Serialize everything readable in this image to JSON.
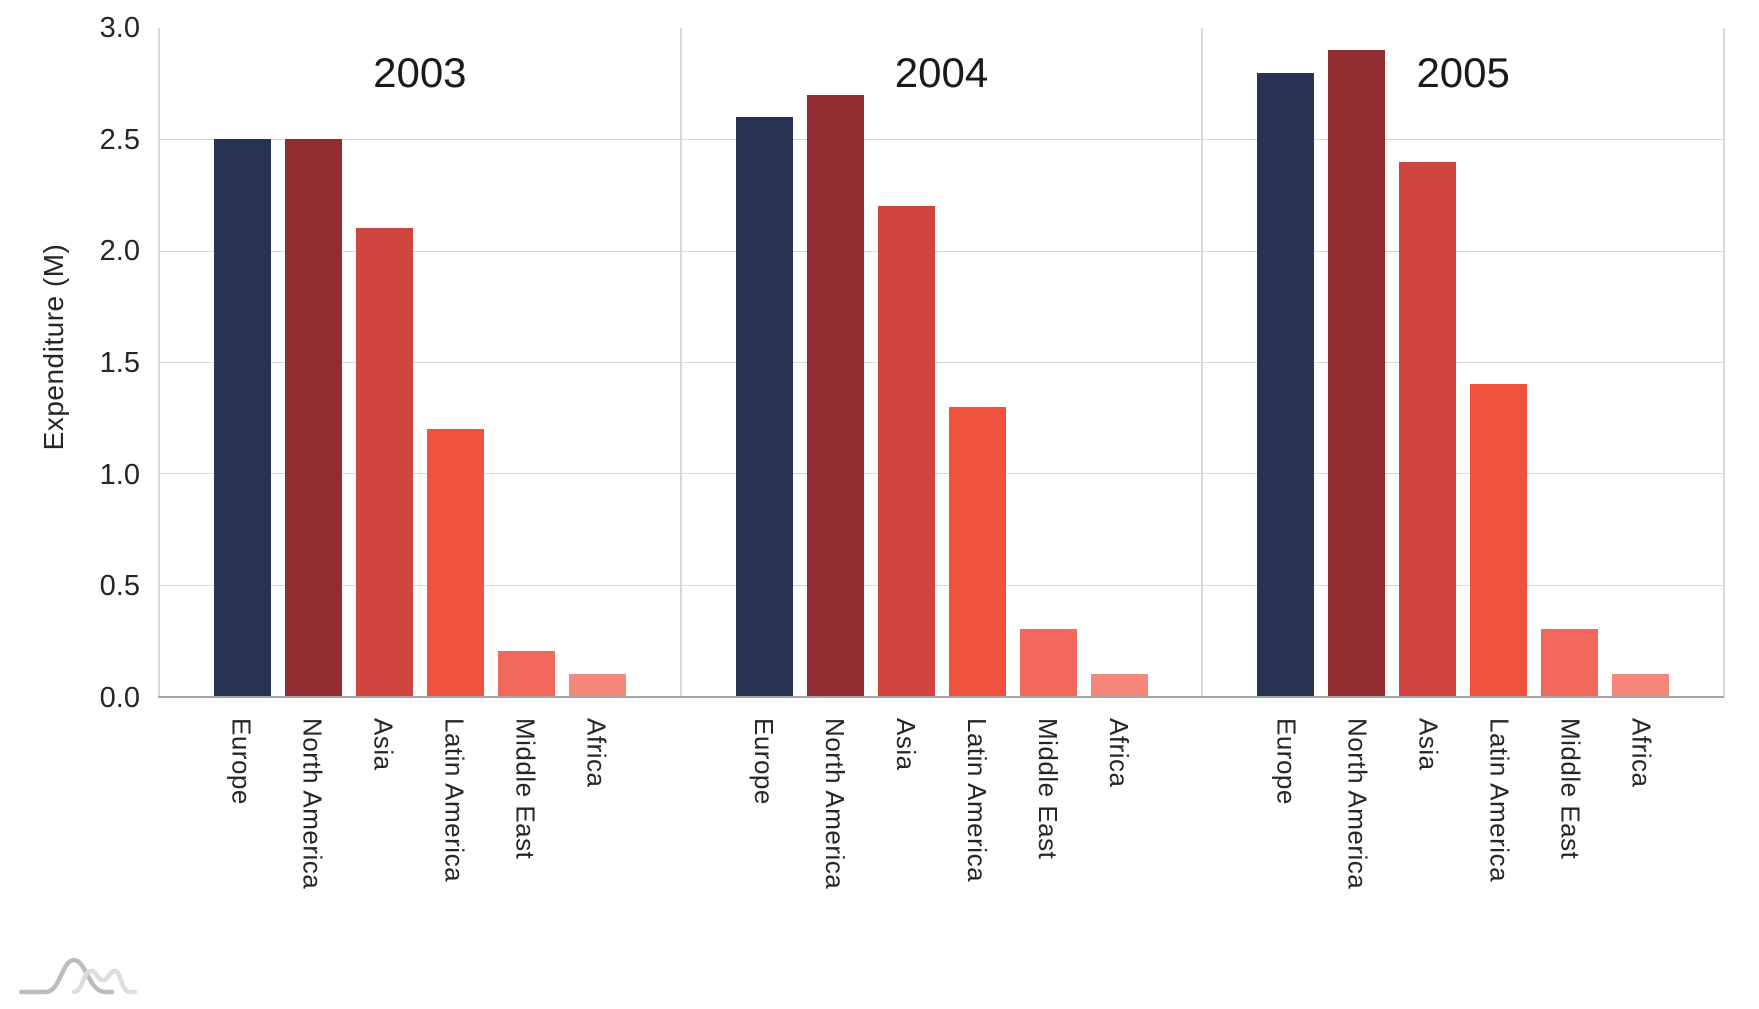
{
  "chart_data": {
    "type": "bar",
    "title": "",
    "ylabel": "Expenditure (M)",
    "xlabel": "",
    "ylim": [
      0,
      3.0
    ],
    "yticks": [
      "3.0",
      "2.5",
      "2.0",
      "1.5",
      "1.0",
      "0.5",
      "0.0"
    ],
    "grid": true,
    "legend_position": "none",
    "categories": [
      "Europe",
      "North America",
      "Asia",
      "Latin America",
      "Middle East",
      "Africa"
    ],
    "bar_colors": [
      "#283353",
      "#912d31",
      "#d04540",
      "#f0523e",
      "#f2685c",
      "#f5877b"
    ],
    "facets": [
      {
        "label": "2003",
        "values": [
          2.5,
          2.5,
          2.1,
          1.2,
          0.2,
          0.1
        ]
      },
      {
        "label": "2004",
        "values": [
          2.6,
          2.7,
          2.2,
          1.3,
          0.3,
          0.1
        ]
      },
      {
        "label": "2005",
        "values": [
          2.8,
          2.9,
          2.4,
          1.4,
          0.3,
          0.1
        ]
      }
    ],
    "grid_color": "#d9d9d9",
    "axis_line_color": "#a6a6a6",
    "text_color": "#262626",
    "background": "#ffffff"
  },
  "footer": {
    "logo_icon": "hill-curves-logo"
  }
}
